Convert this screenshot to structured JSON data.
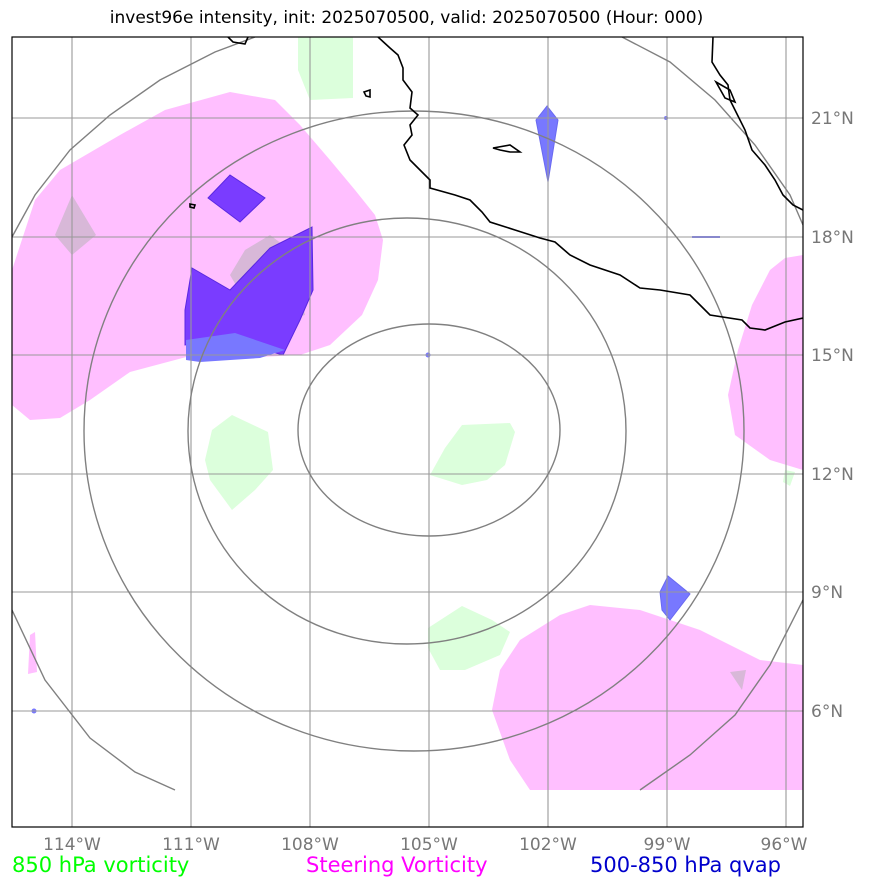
{
  "title": "invest96e intensity, init: 2025070500, valid: 2025070500 (Hour: 000)",
  "lon_ticks": [
    "114°W",
    "111°W",
    "108°W",
    "105°W",
    "102°W",
    "99°W",
    "96°W"
  ],
  "lat_ticks": [
    "21°N",
    "18°N",
    "15°N",
    "12°N",
    "9°N",
    "6°N"
  ],
  "legend": {
    "vort850": "850 hPa vorticity",
    "steering": "Steering Vorticity",
    "qvap": "500-850 hPa qvap"
  },
  "colors": {
    "vort850": "#00ff00",
    "steering": "#ff00ff",
    "qvap": "#0000cc",
    "vort850_fill": "#dcffdc",
    "steering_fill": "#ffbfff",
    "qvap_fill": "#7878ff",
    "qvap_dark_fill": "#7a3cff",
    "grid": "#999999",
    "range_rings": "#808080",
    "coastline": "#000000"
  },
  "center": {
    "lon": -105,
    "lat": 15
  }
}
